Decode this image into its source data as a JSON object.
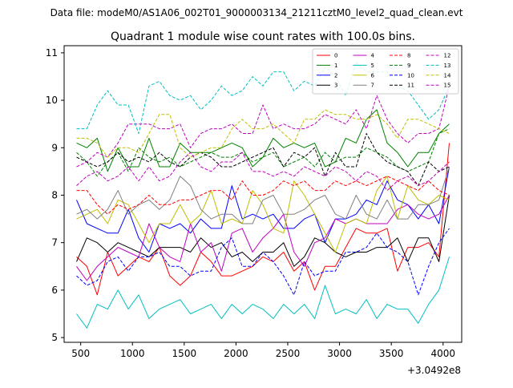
{
  "figure": {
    "suptitle": "Data file: modeM0/AS1A06_002T01_9000003134_21211cztM0_level2_quad_clean.evt"
  },
  "chart_data": {
    "type": "line",
    "title": "Quadrant 1 module wise count rates with 100.0s bins.",
    "xlabel": "",
    "ylabel": "",
    "x_offset_label": "+3.0492e8",
    "xlim": [
      340,
      4180
    ],
    "ylim": [
      4.9,
      11.15
    ],
    "xticks": [
      500,
      1000,
      1500,
      2000,
      2500,
      3000,
      3500,
      4000
    ],
    "yticks": [
      5,
      6,
      7,
      8,
      9,
      10,
      11
    ],
    "grid": false,
    "legend_position": "top-right",
    "x": [
      460,
      560,
      660,
      760,
      860,
      960,
      1060,
      1160,
      1260,
      1360,
      1460,
      1560,
      1660,
      1760,
      1860,
      1960,
      2060,
      2160,
      2260,
      2360,
      2460,
      2560,
      2660,
      2760,
      2860,
      2960,
      3060,
      3160,
      3260,
      3360,
      3460,
      3560,
      3660,
      3760,
      3860,
      3960,
      4060
    ],
    "series": [
      {
        "name": "0",
        "color": "#ff0000",
        "dash": "solid",
        "values": [
          6.7,
          6.5,
          5.9,
          6.8,
          6.3,
          6.5,
          6.7,
          6.6,
          6.9,
          6.3,
          6.1,
          6.3,
          6.8,
          6.6,
          6.3,
          6.3,
          6.4,
          6.5,
          6.7,
          6.6,
          6.8,
          6.4,
          6.6,
          6.0,
          6.5,
          6.5,
          6.9,
          7.3,
          7.2,
          7.2,
          7.3,
          6.4,
          6.9,
          6.9,
          7.0,
          6.7,
          9.1
        ]
      },
      {
        "name": "1",
        "color": "#008000",
        "dash": "solid",
        "values": [
          9.1,
          9.0,
          9.2,
          8.5,
          9.0,
          8.6,
          8.6,
          9.2,
          8.6,
          8.6,
          9.1,
          8.9,
          8.9,
          8.9,
          9.0,
          9.1,
          9.0,
          8.6,
          8.8,
          9.2,
          9.0,
          9.1,
          9.0,
          9.1,
          8.6,
          8.7,
          9.2,
          9.1,
          9.6,
          9.8,
          9.1,
          8.9,
          8.6,
          8.9,
          8.9,
          9.3,
          9.5
        ]
      },
      {
        "name": "2",
        "color": "#0000ff",
        "dash": "solid",
        "values": [
          7.9,
          7.4,
          7.3,
          7.2,
          7.2,
          7.7,
          7.1,
          6.8,
          7.4,
          7.3,
          7.4,
          7.2,
          7.5,
          7.3,
          7.3,
          8.2,
          7.5,
          7.6,
          7.5,
          7.6,
          7.3,
          7.3,
          7.5,
          7.6,
          7.0,
          7.5,
          7.5,
          7.6,
          7.9,
          7.8,
          8.3,
          7.9,
          7.8,
          7.5,
          7.8,
          7.4,
          8.6
        ]
      },
      {
        "name": "3",
        "color": "#000000",
        "dash": "solid",
        "values": [
          6.6,
          7.1,
          7.0,
          6.8,
          7.0,
          6.9,
          6.8,
          6.7,
          6.9,
          6.9,
          6.9,
          6.8,
          7.1,
          6.9,
          7.0,
          6.7,
          6.8,
          6.6,
          6.8,
          6.8,
          7.0,
          6.5,
          6.7,
          7.1,
          7.0,
          6.8,
          6.7,
          6.8,
          6.8,
          6.9,
          6.9,
          7.1,
          6.6,
          7.1,
          7.1,
          6.6,
          8.0
        ]
      },
      {
        "name": "4",
        "color": "#bf00bf",
        "dash": "solid",
        "values": [
          6.5,
          6.2,
          6.5,
          6.7,
          6.9,
          6.8,
          6.7,
          7.4,
          6.9,
          6.7,
          6.6,
          7.4,
          6.8,
          7.0,
          6.4,
          7.2,
          7.3,
          6.8,
          7.1,
          7.3,
          7.6,
          6.8,
          6.5,
          7.0,
          7.1,
          7.5,
          7.4,
          7.5,
          7.4,
          7.4,
          7.4,
          7.7,
          7.8,
          7.6,
          7.5,
          7.6,
          8.0
        ]
      },
      {
        "name": "5",
        "color": "#00bfbf",
        "dash": "solid",
        "values": [
          5.5,
          5.2,
          5.7,
          5.6,
          6.0,
          5.6,
          5.9,
          5.4,
          5.6,
          5.7,
          5.8,
          5.5,
          5.6,
          5.7,
          5.4,
          5.7,
          5.5,
          5.7,
          5.6,
          5.4,
          5.7,
          5.5,
          5.7,
          5.4,
          6.1,
          5.5,
          5.6,
          5.5,
          5.8,
          5.4,
          5.7,
          5.6,
          5.6,
          5.3,
          5.7,
          6.0,
          6.7
        ]
      },
      {
        "name": "6",
        "color": "#bfbf00",
        "dash": "solid",
        "values": [
          7.5,
          7.6,
          7.7,
          7.4,
          7.9,
          7.8,
          7.4,
          7.0,
          7.4,
          7.4,
          7.8,
          7.4,
          7.6,
          8.1,
          7.4,
          7.5,
          7.4,
          8.1,
          7.8,
          7.3,
          7.2,
          8.3,
          8.0,
          7.6,
          7.2,
          6.8,
          7.4,
          7.5,
          7.4,
          8.1,
          8.4,
          7.5,
          8.2,
          7.9,
          7.8,
          8.0,
          7.9
        ]
      },
      {
        "name": "7",
        "color": "#808080",
        "dash": "solid",
        "values": [
          7.6,
          7.7,
          7.5,
          7.7,
          8.1,
          7.6,
          7.8,
          7.9,
          7.7,
          7.9,
          8.4,
          8.2,
          7.7,
          7.5,
          7.6,
          7.6,
          7.4,
          7.4,
          7.9,
          8.0,
          7.6,
          7.6,
          7.7,
          7.9,
          8.0,
          7.6,
          7.5,
          8.0,
          7.6,
          7.5,
          7.9,
          7.5,
          7.5,
          7.8,
          7.8,
          7.9,
          8.6
        ]
      },
      {
        "name": "8",
        "color": "#ff0000",
        "dash": "dashed",
        "values": [
          8.1,
          8.1,
          7.8,
          7.6,
          7.8,
          7.7,
          7.8,
          8.0,
          7.8,
          7.8,
          7.9,
          7.9,
          8.0,
          8.1,
          8.1,
          7.9,
          8.3,
          8.0,
          8.0,
          8.1,
          8.3,
          8.2,
          8.3,
          8.1,
          8.1,
          8.3,
          8.2,
          8.3,
          8.2,
          8.3,
          8.4,
          8.3,
          8.2,
          8.1,
          8.3,
          8.1,
          8.0
        ]
      },
      {
        "name": "9",
        "color": "#008000",
        "dash": "dashed",
        "values": [
          8.9,
          8.7,
          8.4,
          8.7,
          8.9,
          8.5,
          9.0,
          8.8,
          8.7,
          8.8,
          8.6,
          8.7,
          8.8,
          8.9,
          8.8,
          8.8,
          8.9,
          8.7,
          8.8,
          8.9,
          8.6,
          8.7,
          8.8,
          8.6,
          8.9,
          8.7,
          8.8,
          8.8,
          9.0,
          8.9,
          8.8,
          8.6,
          8.5,
          8.6,
          8.7,
          9.3,
          9.4
        ]
      },
      {
        "name": "10",
        "color": "#0000ff",
        "dash": "dashed",
        "values": [
          6.3,
          6.1,
          6.2,
          6.6,
          6.7,
          6.4,
          6.7,
          6.7,
          6.8,
          6.5,
          6.5,
          6.3,
          6.4,
          6.4,
          6.9,
          7.1,
          6.5,
          6.5,
          6.8,
          6.6,
          6.3,
          5.9,
          6.6,
          6.3,
          6.4,
          6.4,
          6.8,
          6.8,
          6.9,
          7.2,
          6.9,
          6.8,
          6.6,
          5.9,
          6.5,
          7.0,
          7.3
        ]
      },
      {
        "name": "11",
        "color": "#000000",
        "dash": "dashed",
        "values": [
          8.8,
          8.7,
          8.6,
          8.7,
          8.9,
          8.7,
          8.8,
          8.7,
          8.9,
          8.7,
          8.6,
          8.8,
          8.9,
          8.8,
          8.6,
          8.6,
          8.7,
          8.8,
          8.9,
          9.0,
          8.6,
          8.9,
          8.8,
          9.0,
          8.4,
          8.9,
          8.6,
          8.6,
          9.3,
          8.9,
          8.7,
          8.6,
          8.5,
          8.2,
          8.7,
          8.5,
          8.6
        ]
      },
      {
        "name": "12",
        "color": "#bf00bf",
        "dash": "dashed",
        "values": [
          8.6,
          8.7,
          8.9,
          8.8,
          9.1,
          9.5,
          9.5,
          9.5,
          9.4,
          9.4,
          9.5,
          9.0,
          9.3,
          9.4,
          9.4,
          9.5,
          9.3,
          9.3,
          9.9,
          9.4,
          9.5,
          9.4,
          9.4,
          9.5,
          9.7,
          9.6,
          9.5,
          9.8,
          9.4,
          10.1,
          9.6,
          9.3,
          9.1,
          9.3,
          9.3,
          9.4,
          10.3
        ]
      },
      {
        "name": "13",
        "color": "#00bfbf",
        "dash": "dashed",
        "values": [
          9.4,
          9.4,
          9.9,
          10.2,
          9.9,
          9.9,
          9.3,
          10.3,
          10.4,
          10.1,
          10.0,
          10.1,
          9.8,
          10.0,
          10.3,
          10.1,
          10.2,
          10.5,
          10.3,
          10.6,
          10.6,
          10.2,
          10.4,
          10.3,
          10.7,
          10.5,
          10.1,
          10.8,
          10.6,
          10.6,
          10.6,
          10.3,
          10.2,
          9.9,
          9.6,
          9.8,
          10.3
        ]
      },
      {
        "name": "14",
        "color": "#bfbf00",
        "dash": "dashed",
        "values": [
          9.2,
          9.2,
          9.1,
          8.8,
          9.0,
          9.0,
          8.9,
          9.3,
          9.7,
          9.7,
          9.0,
          8.8,
          8.9,
          9.0,
          9.0,
          9.4,
          9.6,
          9.4,
          9.4,
          9.5,
          9.3,
          9.1,
          9.6,
          9.6,
          9.8,
          9.7,
          9.7,
          9.6,
          9.6,
          9.7,
          9.5,
          9.2,
          9.6,
          9.6,
          9.5,
          9.4,
          9.3
        ]
      },
      {
        "name": "15",
        "color": "#bf00bf",
        "dash": "dashdot",
        "values": [
          8.2,
          8.4,
          8.5,
          8.3,
          8.4,
          8.6,
          8.3,
          8.6,
          8.3,
          8.4,
          8.7,
          8.9,
          8.6,
          8.5,
          8.7,
          8.7,
          8.9,
          8.5,
          8.5,
          8.4,
          8.5,
          8.4,
          8.6,
          8.5,
          8.4,
          8.6,
          8.5,
          8.3,
          8.5,
          8.4,
          8.1,
          8.3,
          8.4,
          8.2,
          8.3,
          8.5,
          8.7
        ]
      }
    ]
  }
}
